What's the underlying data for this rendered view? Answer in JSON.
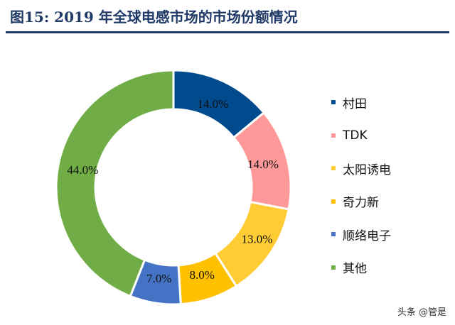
{
  "title": "图15: 2019 年全球电感市场的市场份额情况",
  "watermark": "头条 @管是",
  "chart_data": {
    "type": "pie",
    "donut": true,
    "legend_position": "right",
    "categories": [
      "村田",
      "TDK",
      "太阳诱电",
      "奇力新",
      "顺络电子",
      "其他"
    ],
    "values": [
      14.0,
      14.0,
      13.0,
      8.0,
      7.0,
      44.0
    ],
    "data_labels": [
      "14.0%",
      "14.0%",
      "13.0%",
      "8.0%",
      "7.0%",
      "44.0%"
    ],
    "colors": [
      "#004b8d",
      "#ff9999",
      "#ffcc33",
      "#ffc000",
      "#4472c4",
      "#70ad47"
    ]
  }
}
